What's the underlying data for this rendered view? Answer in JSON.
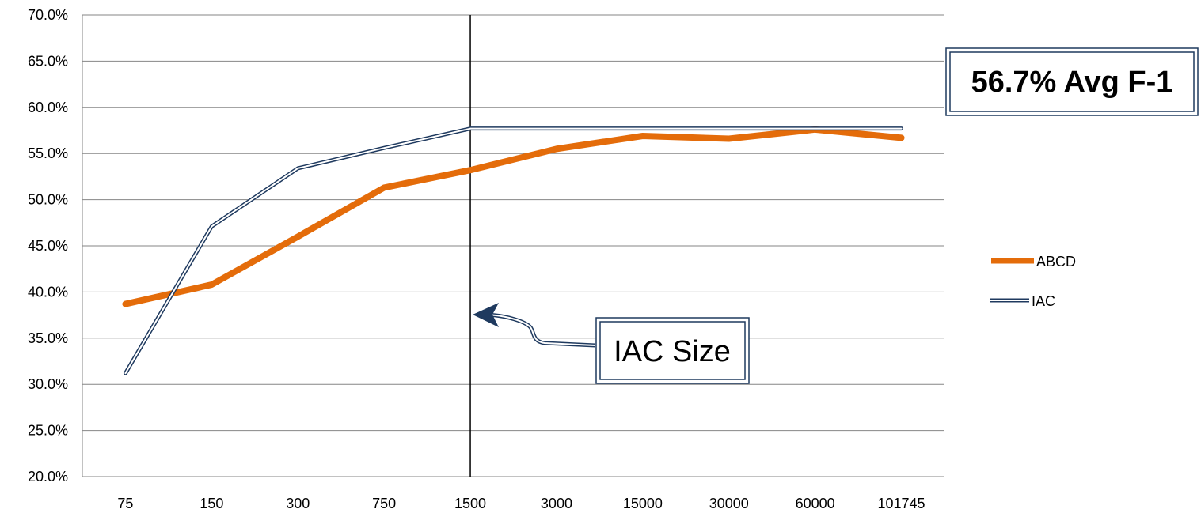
{
  "chart_data": {
    "type": "line",
    "categories": [
      "75",
      "150",
      "300",
      "750",
      "1500",
      "3000",
      "15000",
      "30000",
      "60000",
      "101745"
    ],
    "ylim": [
      20.0,
      70.0
    ],
    "y_ticks": [
      "20.0%",
      "25.0%",
      "30.0%",
      "35.0%",
      "40.0%",
      "45.0%",
      "50.0%",
      "55.0%",
      "60.0%",
      "65.0%",
      "70.0%"
    ],
    "y_unit": "%",
    "grid": "horizontal",
    "legend_position": "right",
    "series": [
      {
        "name": "ABCD",
        "color": "#E46C0A",
        "style": "thick-solid",
        "values": [
          38.7,
          40.8,
          46.0,
          51.3,
          53.2,
          55.5,
          56.9,
          56.6,
          57.6,
          56.7
        ]
      },
      {
        "name": "IAC",
        "color": "#1F3A5F",
        "style": "double-line",
        "values": [
          31.2,
          47.1,
          53.4,
          55.6,
          57.7,
          57.7,
          57.7,
          57.7,
          57.7,
          57.7
        ]
      }
    ],
    "vertical_marker_category": "1500",
    "annotations": {
      "callout": "IAC Size",
      "summary": "56.7% Avg F-1"
    }
  }
}
